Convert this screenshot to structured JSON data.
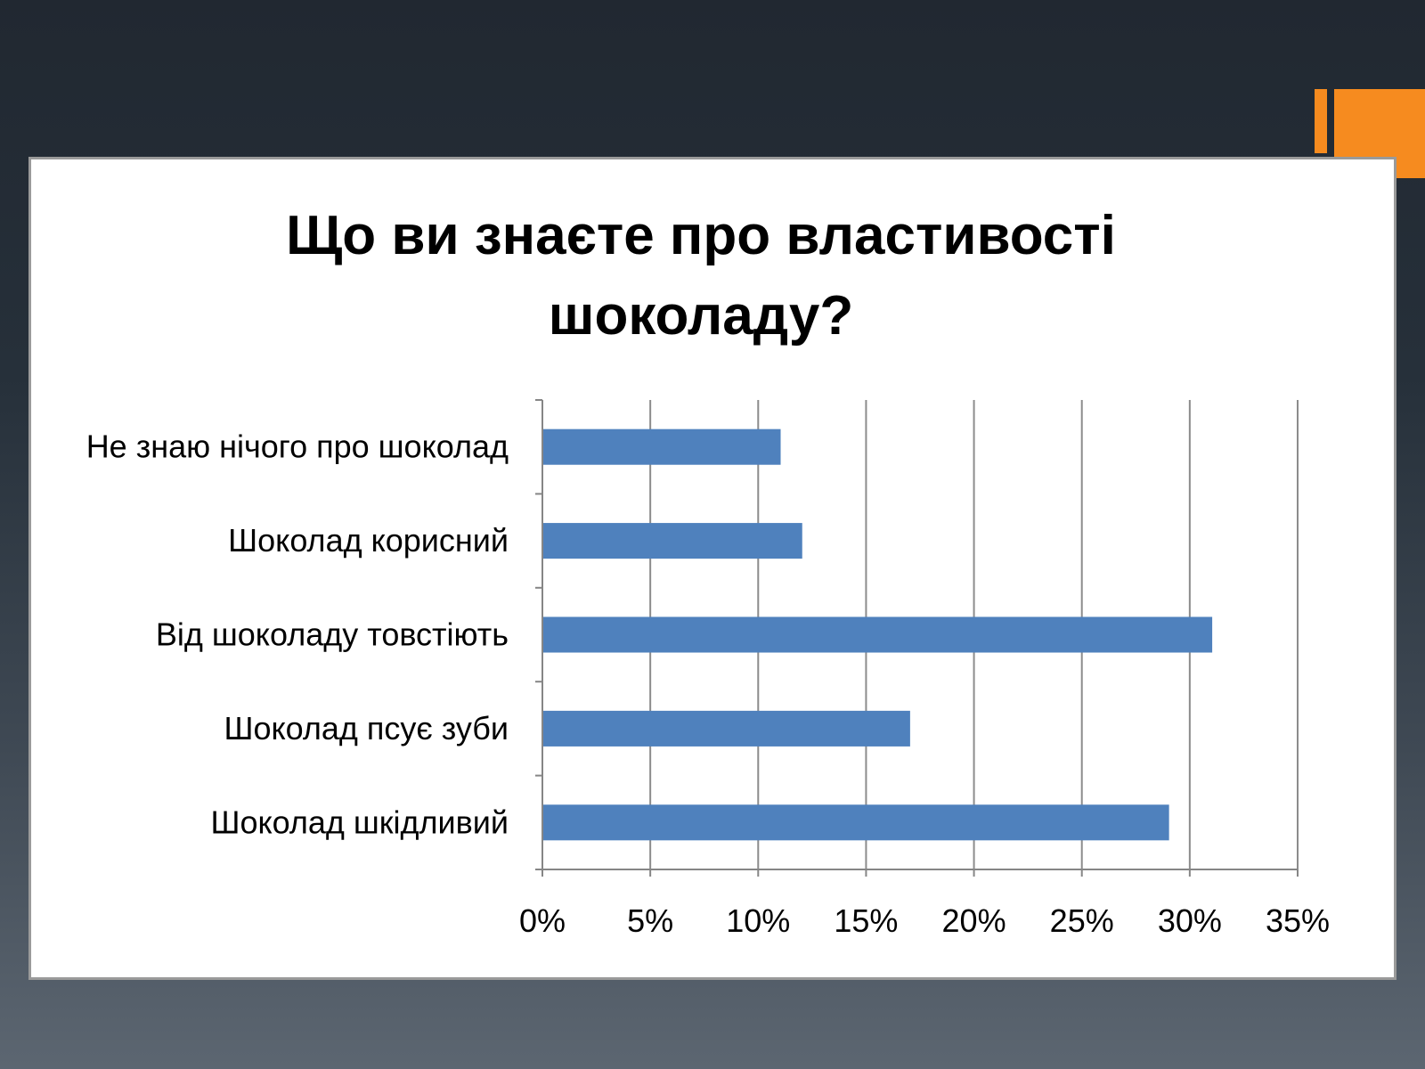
{
  "colors": {
    "accent": "#f68b1f",
    "bar": "#4f81bd",
    "gridline": "#8c8c8c",
    "axis": "#868686"
  },
  "chart_data": {
    "type": "bar",
    "orientation": "horizontal",
    "title": "Що ви знаєте про властивості шоколаду?",
    "title_lines": [
      "Що ви знаєте про властивості",
      "шоколаду?"
    ],
    "categories": [
      "Не знаю нічого про шоколад",
      "Шоколад корисний",
      "Від шоколаду товстіють",
      "Шоколад псує зуби",
      "Шоколад шкідливий"
    ],
    "values": [
      0.11,
      0.12,
      0.31,
      0.17,
      0.29
    ],
    "xlim": [
      0,
      0.35
    ],
    "x_ticks": [
      0,
      0.05,
      0.1,
      0.15,
      0.2,
      0.25,
      0.3,
      0.35
    ],
    "x_tick_labels": [
      "0%",
      "5%",
      "10%",
      "15%",
      "20%",
      "25%",
      "30%",
      "35%"
    ],
    "xlabel": "",
    "ylabel": "",
    "grid": "vertical",
    "legend": "none"
  }
}
